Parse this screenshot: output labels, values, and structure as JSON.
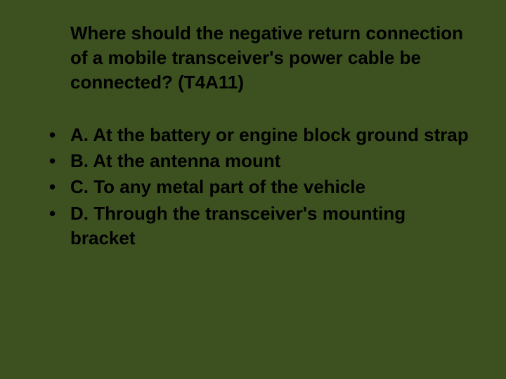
{
  "slide": {
    "background_color": "#3d5020",
    "text_color": "#000000",
    "font_family": "Verdana, Geneva, sans-serif",
    "font_weight": "bold",
    "title_fontsize": 26,
    "option_fontsize": 26,
    "title": "Where should the negative return connection of a mobile transceiver's power cable be connected? (T4A11)",
    "options": [
      "A. At the battery or engine block ground strap",
      "B. At the antenna mount",
      "C. To any metal part of the vehicle",
      "D. Through the transceiver's mounting bracket"
    ]
  }
}
